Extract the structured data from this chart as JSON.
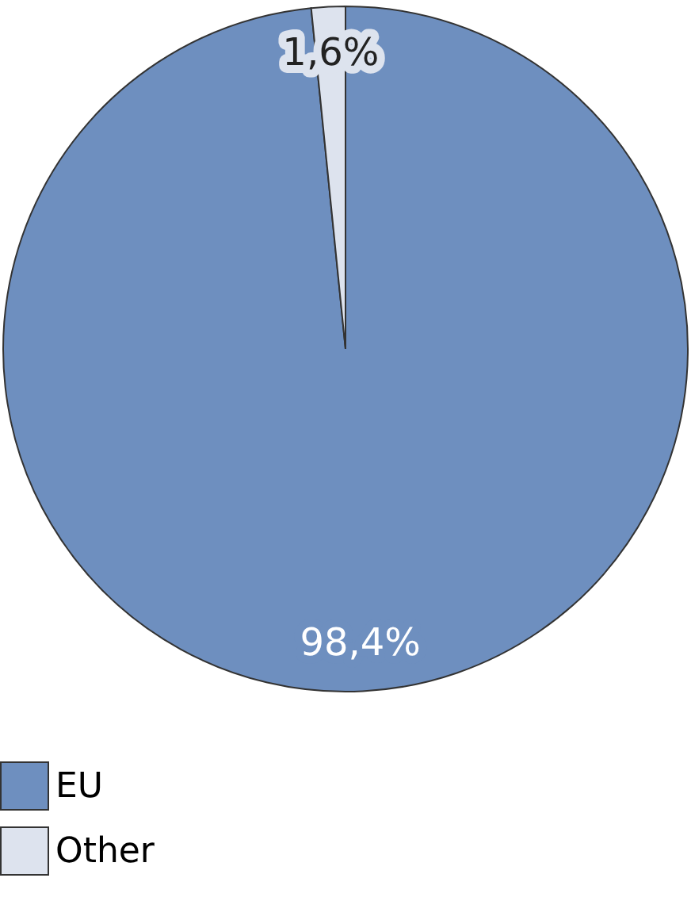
{
  "chart_data": {
    "type": "pie",
    "categories": [
      "EU",
      "Other"
    ],
    "values": [
      98.4,
      1.6
    ],
    "colors": [
      "#6e8fbf",
      "#dde3ee"
    ],
    "value_labels": [
      "98,4%",
      "1,6%"
    ],
    "legend": "bottom"
  }
}
